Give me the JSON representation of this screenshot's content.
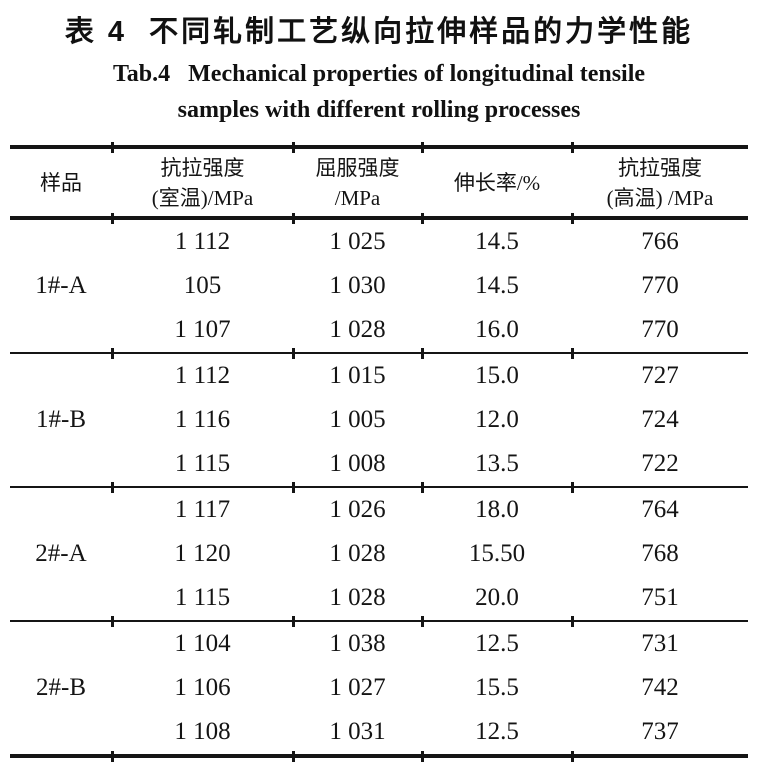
{
  "table": {
    "title_zh": "表 4  不同轧制工艺纵向拉伸样品的力学性能",
    "title_en_line1": "Tab.4   Mechanical properties of longitudinal tensile",
    "title_en_line2": "samples with different rolling processes",
    "columns": [
      {
        "line1": "样品",
        "line2": ""
      },
      {
        "line1": "抗拉强度",
        "line2": "(室温)/MPa"
      },
      {
        "line1": "屈服强度",
        "line2": "/MPa"
      },
      {
        "line1": "伸长率/%",
        "line2": ""
      },
      {
        "line1": "抗拉强度",
        "line2": "(高温) /MPa"
      }
    ],
    "groups": [
      {
        "sample": "1#-A",
        "rows": [
          [
            "1 112",
            "1 025",
            "14.5",
            "766"
          ],
          [
            "105",
            "1 030",
            "14.5",
            "770"
          ],
          [
            "1 107",
            "1 028",
            "16.0",
            "770"
          ]
        ]
      },
      {
        "sample": "1#-B",
        "rows": [
          [
            "1 112",
            "1 015",
            "15.0",
            "727"
          ],
          [
            "1 116",
            "1 005",
            "12.0",
            "724"
          ],
          [
            "1 115",
            "1 008",
            "13.5",
            "722"
          ]
        ]
      },
      {
        "sample": "2#-A",
        "rows": [
          [
            "1 117",
            "1 026",
            "18.0",
            "764"
          ],
          [
            "1 120",
            "1 028",
            "15.50",
            "768"
          ],
          [
            "1 115",
            "1 028",
            "20.0",
            "751"
          ]
        ]
      },
      {
        "sample": "2#-B",
        "rows": [
          [
            "1 104",
            "1 038",
            "12.5",
            "731"
          ],
          [
            "1 106",
            "1 027",
            "15.5",
            "742"
          ],
          [
            "1 108",
            "1 031",
            "12.5",
            "737"
          ]
        ]
      }
    ]
  }
}
